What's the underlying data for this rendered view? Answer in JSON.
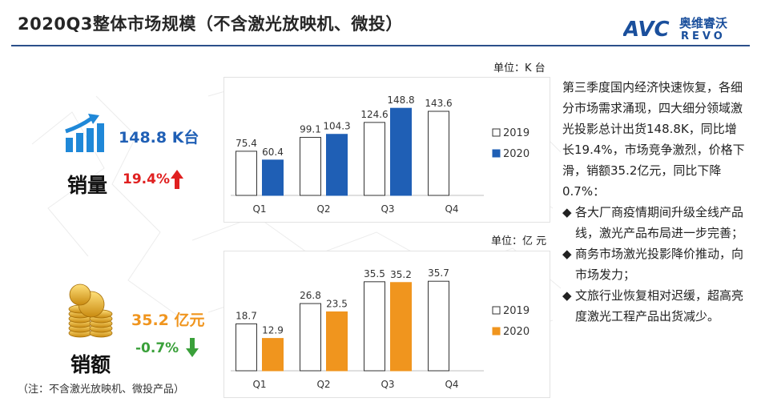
{
  "title": "2020Q3整体市场规模（不含激光放映机、微投）",
  "logo": {
    "cn": "奥维睿沃",
    "en": "REVO",
    "mark": "AVC"
  },
  "volume": {
    "value": "148.8 K台",
    "label": "销量",
    "change": "19.4%",
    "unit": "单位：K 台",
    "color_value": "#1f5fb5",
    "color_change": "#e02020"
  },
  "revenue": {
    "value": "35.2 亿元",
    "label": "销额",
    "change": "-0.7%",
    "unit": "单位：亿 元",
    "color_value": "#f0951e",
    "color_change": "#3aa03a"
  },
  "note": "（注：不含激光放映机、微投产品）",
  "chart_data": [
    {
      "type": "bar",
      "categories": [
        "Q1",
        "Q2",
        "Q3",
        "Q4"
      ],
      "series": [
        {
          "name": "2019",
          "values": [
            75.4,
            99.1,
            124.6,
            143.6
          ],
          "color": "#ffffff"
        },
        {
          "name": "2020",
          "values": [
            60.4,
            104.3,
            148.8,
            null
          ],
          "color": "#1f5fb5"
        }
      ],
      "unit": "单位：K 台",
      "legend": "right",
      "ylim": [
        0,
        160
      ],
      "grid": false
    },
    {
      "type": "bar",
      "categories": [
        "Q1",
        "Q2",
        "Q3",
        "Q4"
      ],
      "series": [
        {
          "name": "2019",
          "values": [
            18.7,
            26.8,
            35.5,
            35.7
          ],
          "color": "#ffffff"
        },
        {
          "name": "2020",
          "values": [
            12.9,
            23.5,
            35.2,
            null
          ],
          "color": "#f0951e"
        }
      ],
      "unit": "单位：亿 元",
      "legend": "right",
      "ylim": [
        0,
        38
      ],
      "grid": false
    }
  ],
  "text": {
    "intro": "第三季度国内经济快速恢复，各细分市场需求涌现，四大细分领域激光投影总计出货148.8K，同比增长19.4%，市场竞争激烈，价格下滑，销额35.2亿元，同比下降0.7%：",
    "bullets": [
      "各大厂商疫情期间升级全线产品线，激光产品布局进一步完善；",
      "商务市场激光投影降价推动，向市场发力；",
      "文旅行业恢复相对迟缓，超高亮度激光工程产品出货减少。"
    ],
    "bullet_symbol": "◆"
  }
}
